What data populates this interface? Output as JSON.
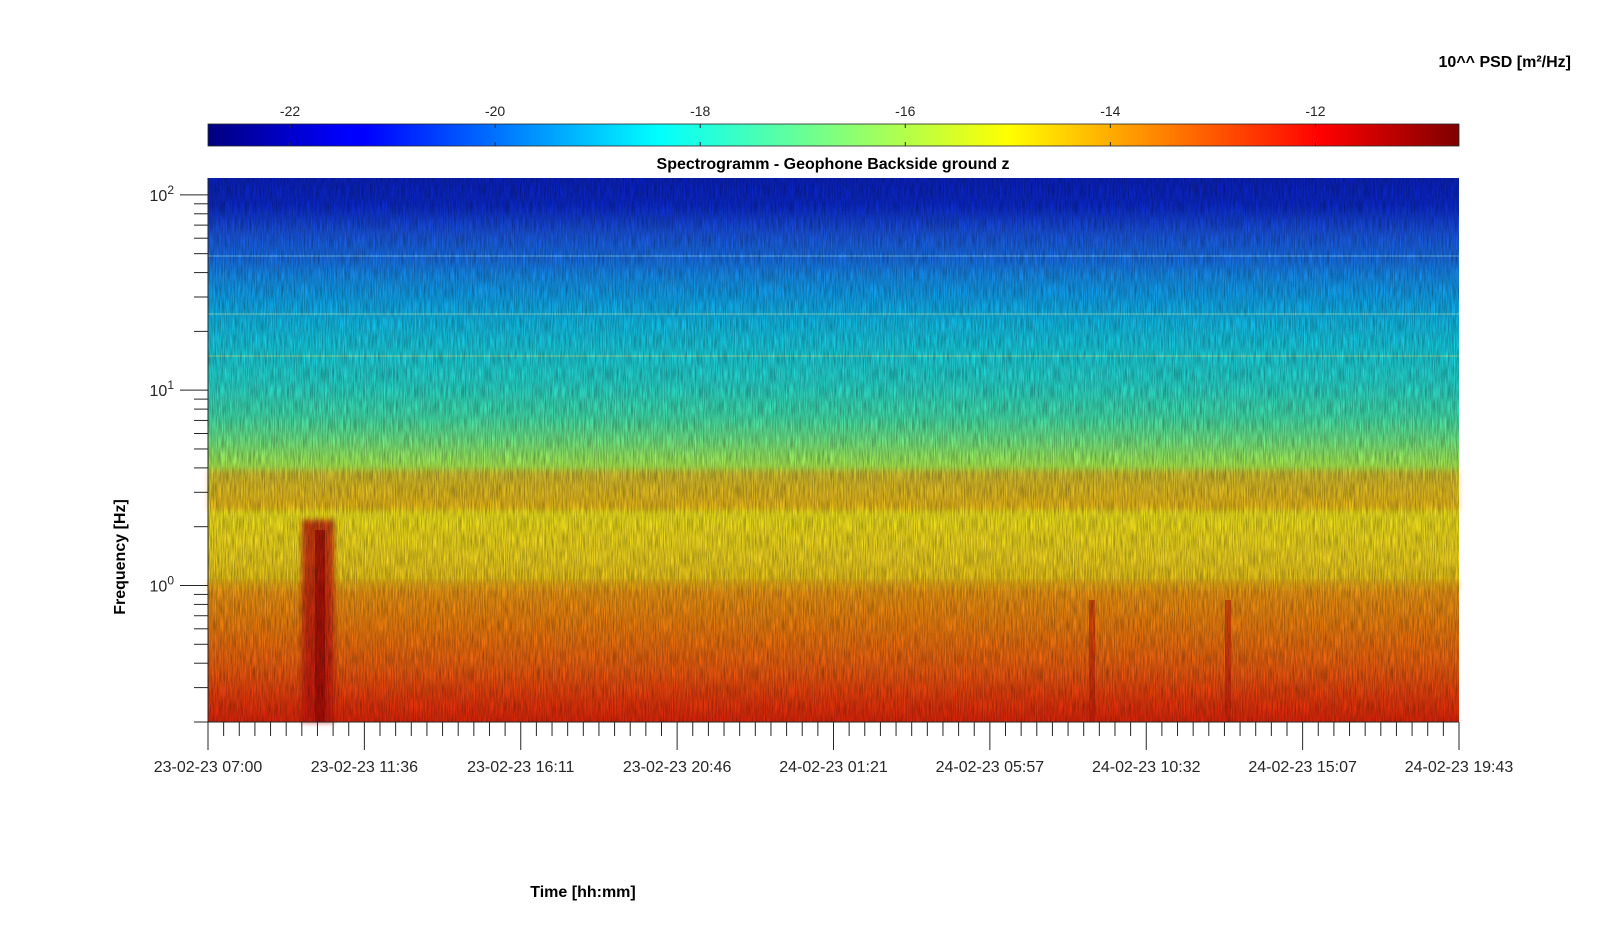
{
  "chart_data": {
    "type": "heatmap",
    "title": "Spectrogramm - Geophone Backside ground z",
    "xlabel": "Time [hh:mm]",
    "ylabel": "Frequency [Hz]",
    "x_tick_labels": [
      "23-02-23 07:00",
      "23-02-23 11:36",
      "23-02-23 16:11",
      "23-02-23 20:46",
      "24-02-23 01:21",
      "24-02-23 05:57",
      "24-02-23 10:32",
      "24-02-23 15:07",
      "24-02-23 19:43"
    ],
    "x_range": [
      "2023-02-23T07:00",
      "2023-02-24T19:43"
    ],
    "y_scale": "log",
    "y_range_hz": [
      0.2,
      122
    ],
    "y_ticks": [
      1,
      10,
      100
    ],
    "y_tick_labels": [
      {
        "base": "10",
        "exp": "0"
      },
      {
        "base": "10",
        "exp": "1"
      },
      {
        "base": "10",
        "exp": "2"
      }
    ],
    "colorbar": {
      "label": "10^^ PSD [m²/Hz]",
      "colormap": "jet",
      "range": [
        -22.8,
        -10.6
      ],
      "ticks": [
        "-22",
        "-20",
        "-18",
        "-16",
        "-14",
        "-12"
      ],
      "tick_values": [
        -22,
        -20,
        -18,
        -16,
        -14,
        -12
      ],
      "location": "top"
    },
    "psd_vs_frequency": [
      {
        "freq_hz": 0.2,
        "log10_psd": -12.4
      },
      {
        "freq_hz": 0.5,
        "log10_psd": -13.0
      },
      {
        "freq_hz": 0.7,
        "log10_psd": -13.6
      },
      {
        "freq_hz": 0.8,
        "log10_psd": -14.6
      },
      {
        "freq_hz": 1.0,
        "log10_psd": -13.6
      },
      {
        "freq_hz": 1.5,
        "log10_psd": -15.0
      },
      {
        "freq_hz": 3.0,
        "log10_psd": -13.9
      },
      {
        "freq_hz": 5.0,
        "log10_psd": -16.2
      },
      {
        "freq_hz": 10.0,
        "log10_psd": -17.0
      },
      {
        "freq_hz": 15.0,
        "log10_psd": -17.8
      },
      {
        "freq_hz": 30.0,
        "log10_psd": -18.4
      },
      {
        "freq_hz": 45.0,
        "log10_psd": -19.0
      },
      {
        "freq_hz": 80.0,
        "log10_psd": -20.8
      },
      {
        "freq_hz": 122.0,
        "log10_psd": -21.8
      }
    ],
    "events": [
      {
        "time": "2023-02-23T10:00",
        "freq_range_hz": [
          0.2,
          2.0
        ],
        "log10_psd": -11.0
      },
      {
        "time": "2023-02-24T07:30",
        "freq_range_hz": [
          0.2,
          1.0
        ],
        "log10_psd": -12.0
      },
      {
        "time": "2023-02-24T11:50",
        "freq_range_hz": [
          0.2,
          1.0
        ],
        "log10_psd": -12.0
      }
    ],
    "grid": false
  }
}
